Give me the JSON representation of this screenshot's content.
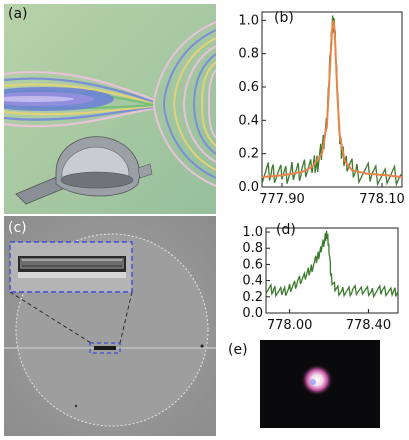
{
  "panel_labels": {
    "a": "(a)",
    "b": "(b)",
    "c": "(c)",
    "d": "(d)",
    "e": "(e)"
  },
  "chart_data": [
    {
      "panel": "(b)",
      "type": "line",
      "xlim": [
        777.86,
        778.14
      ],
      "ylim": [
        0.0,
        1.05
      ],
      "x_ticks": [
        777.9,
        778.1
      ],
      "x_tick_labels": [
        "777.90",
        "778.10"
      ],
      "y_ticks": [
        0.0,
        0.2,
        0.4,
        0.6,
        0.8,
        1.0
      ],
      "y_tick_labels": [
        "0.0",
        "0.2",
        "0.4",
        "0.6",
        "0.8",
        "1.0"
      ],
      "series": [
        {
          "role": "data",
          "color": "#3d7a2e",
          "x": [
            777.86,
            777.88,
            777.9,
            777.92,
            777.94,
            777.96,
            777.97,
            777.98,
            777.99,
            777.995,
            778.0,
            778.003,
            778.006,
            778.01,
            778.015,
            778.02,
            778.03,
            778.05,
            778.08,
            778.11,
            778.14
          ],
          "y": [
            0.08,
            0.09,
            0.07,
            0.09,
            0.1,
            0.12,
            0.14,
            0.22,
            0.4,
            0.7,
            0.95,
            1.0,
            0.92,
            0.62,
            0.32,
            0.2,
            0.13,
            0.09,
            0.08,
            0.07,
            0.08
          ]
        },
        {
          "role": "fit",
          "color": "#e8834a",
          "x": [
            777.86,
            777.9,
            777.94,
            777.96,
            777.98,
            777.99,
            777.995,
            778.0,
            778.003,
            778.006,
            778.01,
            778.015,
            778.025,
            778.04,
            778.07,
            778.11,
            778.14
          ],
          "y": [
            0.06,
            0.07,
            0.09,
            0.12,
            0.2,
            0.38,
            0.66,
            0.94,
            1.0,
            0.9,
            0.6,
            0.32,
            0.16,
            0.1,
            0.08,
            0.07,
            0.06
          ]
        }
      ]
    },
    {
      "panel": "(d)",
      "type": "line",
      "xlim": [
        777.88,
        778.55
      ],
      "ylim": [
        0.0,
        1.05
      ],
      "x_ticks": [
        778.0,
        778.4
      ],
      "x_tick_labels": [
        "778.00",
        "778.40"
      ],
      "y_ticks": [
        0.0,
        0.2,
        0.4,
        0.6,
        0.8,
        1.0
      ],
      "y_tick_labels": [
        "0.0",
        "0.2",
        "0.4",
        "0.6",
        "0.8",
        "1.0"
      ],
      "series": [
        {
          "role": "data",
          "color": "#3d7a2e",
          "x": [
            777.88,
            777.92,
            777.96,
            778.0,
            778.04,
            778.08,
            778.11,
            778.14,
            778.16,
            778.18,
            778.19,
            778.2,
            778.21,
            778.23,
            778.27,
            778.32,
            778.37,
            778.42,
            778.47,
            778.52,
            778.55
          ],
          "y": [
            0.3,
            0.28,
            0.25,
            0.3,
            0.38,
            0.45,
            0.55,
            0.68,
            0.8,
            0.92,
            0.98,
            0.8,
            0.45,
            0.3,
            0.26,
            0.28,
            0.27,
            0.26,
            0.28,
            0.27,
            0.26
          ]
        }
      ]
    }
  ],
  "colors": {
    "dashed_box": "#3b4fd8",
    "data_green": "#3d7a2e",
    "fit_orange": "#e8834a"
  }
}
